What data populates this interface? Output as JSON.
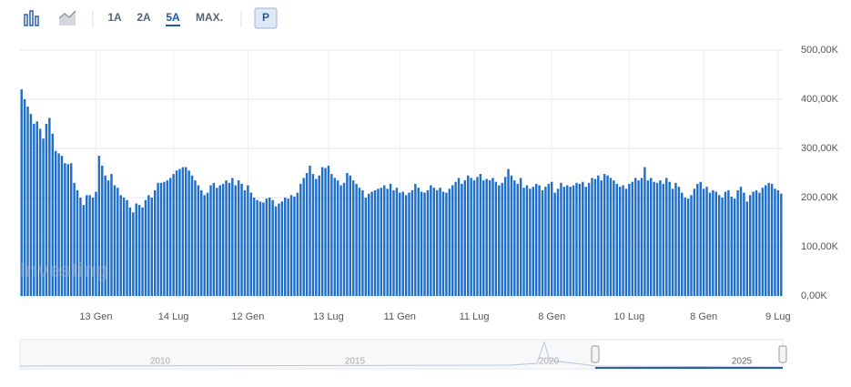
{
  "toolbar": {
    "ranges": [
      "1A",
      "2A",
      "5A",
      "MAX."
    ],
    "active": "5A",
    "mode": "P"
  },
  "navigator": {
    "years": [
      "2010",
      "2015",
      "2020",
      "2025"
    ]
  },
  "chart_data": {
    "type": "bar",
    "watermark": "Investing",
    "color": "#1f6fc9",
    "grid": true,
    "ylim": [
      0,
      500
    ],
    "yticks": [
      {
        "value": 0,
        "label": "0,00K"
      },
      {
        "value": 100,
        "label": "100,00K"
      },
      {
        "value": 200,
        "label": "200,00K"
      },
      {
        "value": 300,
        "label": "300,00K"
      },
      {
        "value": 400,
        "label": "400,00K"
      },
      {
        "value": 500,
        "label": "500,00K"
      }
    ],
    "categories": [
      null,
      null,
      null,
      null,
      null,
      null,
      null,
      null,
      null,
      null,
      null,
      null,
      null,
      null,
      null,
      null,
      null,
      null,
      null,
      null,
      null,
      null,
      null,
      null,
      "13 Gen",
      null,
      null,
      null,
      null,
      null,
      null,
      null,
      null,
      null,
      null,
      null,
      null,
      null,
      null,
      null,
      null,
      null,
      null,
      null,
      null,
      null,
      null,
      null,
      null,
      "14 Lug",
      null,
      null,
      null,
      null,
      null,
      null,
      null,
      null,
      null,
      null,
      null,
      null,
      null,
      null,
      null,
      null,
      null,
      null,
      null,
      null,
      null,
      null,
      null,
      "12 Gen",
      null,
      null,
      null,
      null,
      null,
      null,
      null,
      null,
      null,
      null,
      null,
      null,
      null,
      null,
      null,
      null,
      null,
      null,
      null,
      null,
      null,
      null,
      null,
      null,
      null,
      "13 Lug",
      null,
      null,
      null,
      null,
      null,
      null,
      null,
      null,
      null,
      null,
      null,
      null,
      null,
      null,
      null,
      null,
      null,
      null,
      null,
      null,
      null,
      null,
      "11 Gen",
      null,
      null,
      null,
      null,
      null,
      null,
      null,
      null,
      null,
      null,
      null,
      null,
      null,
      null,
      null,
      null,
      null,
      null,
      null,
      null,
      null,
      null,
      null,
      "11 Lug",
      null,
      null,
      null,
      null,
      null,
      null,
      null,
      null,
      null,
      null,
      null,
      null,
      null,
      null,
      null,
      null,
      null,
      null,
      null,
      null,
      null,
      null,
      null,
      null,
      "8 Gen",
      null,
      null,
      null,
      null,
      null,
      null,
      null,
      null,
      null,
      null,
      null,
      null,
      null,
      null,
      null,
      null,
      null,
      null,
      null,
      null,
      null,
      null,
      null,
      null,
      "10 Lug",
      null,
      null,
      null,
      null,
      null,
      null,
      null,
      null,
      null,
      null,
      null,
      null,
      null,
      null,
      null,
      null,
      null,
      null,
      null,
      null,
      null,
      null,
      null,
      "8 Gen",
      null,
      null,
      null,
      null,
      null,
      null,
      null,
      null,
      null,
      null,
      null,
      null,
      null,
      null,
      null,
      null,
      null,
      null,
      null,
      null,
      null,
      null,
      null,
      "9 Lug",
      null
    ],
    "values": [
      420,
      400,
      385,
      370,
      350,
      355,
      340,
      320,
      350,
      362,
      330,
      295,
      290,
      285,
      270,
      268,
      270,
      230,
      215,
      200,
      185,
      205,
      205,
      200,
      212,
      285,
      265,
      245,
      235,
      248,
      225,
      220,
      205,
      200,
      195,
      180,
      170,
      188,
      185,
      180,
      195,
      205,
      200,
      215,
      230,
      230,
      232,
      235,
      240,
      248,
      255,
      258,
      262,
      262,
      255,
      245,
      235,
      225,
      215,
      205,
      210,
      225,
      230,
      220,
      225,
      228,
      235,
      230,
      240,
      225,
      235,
      228,
      215,
      225,
      210,
      200,
      195,
      192,
      190,
      198,
      200,
      195,
      182,
      188,
      192,
      200,
      198,
      205,
      202,
      210,
      228,
      240,
      250,
      265,
      248,
      238,
      245,
      262,
      260,
      265,
      248,
      240,
      235,
      225,
      230,
      250,
      245,
      235,
      228,
      220,
      215,
      200,
      208,
      212,
      215,
      218,
      220,
      225,
      218,
      228,
      215,
      220,
      210,
      212,
      205,
      210,
      215,
      228,
      220,
      212,
      210,
      215,
      225,
      220,
      215,
      220,
      212,
      210,
      218,
      225,
      232,
      240,
      228,
      235,
      245,
      240,
      235,
      242,
      248,
      235,
      238,
      235,
      240,
      232,
      225,
      230,
      242,
      258,
      245,
      235,
      228,
      240,
      220,
      225,
      218,
      222,
      228,
      225,
      215,
      222,
      228,
      232,
      210,
      218,
      230,
      222,
      225,
      222,
      225,
      230,
      228,
      232,
      222,
      230,
      240,
      238,
      245,
      235,
      248,
      245,
      240,
      235,
      228,
      222,
      225,
      218,
      228,
      232,
      240,
      235,
      240,
      262,
      235,
      240,
      232,
      230,
      235,
      228,
      240,
      232,
      218,
      230,
      222,
      210,
      200,
      198,
      205,
      218,
      228,
      232,
      218,
      222,
      210,
      215,
      212,
      205,
      200,
      212,
      215,
      202,
      198,
      215,
      222,
      210,
      192,
      205,
      212,
      215,
      210,
      220,
      225,
      230,
      228,
      218,
      215,
      208
    ]
  }
}
